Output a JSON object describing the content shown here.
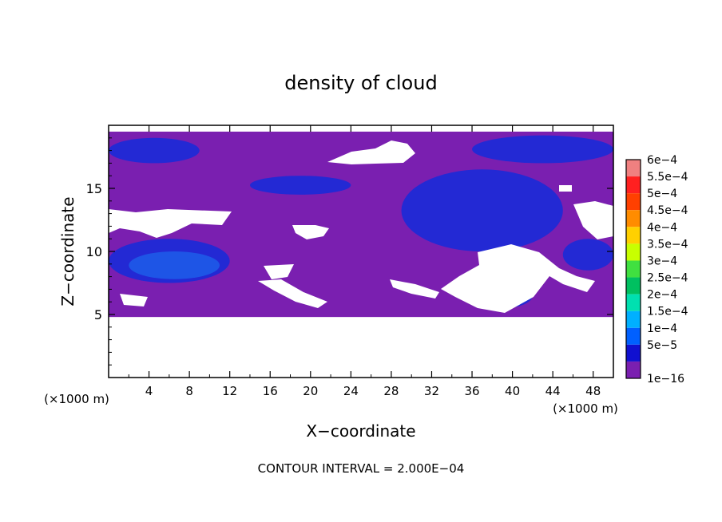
{
  "chart_data": {
    "type": "heatmap",
    "title": "density of cloud",
    "xlabel": "X−coordinate",
    "ylabel": "Z−coordinate",
    "x_unit_left": "(×1000 m)",
    "x_unit_right": "(×1000 m)",
    "footer": "CONTOUR INTERVAL = 2.000E−04",
    "xlim": [
      0,
      50
    ],
    "ylim": [
      0,
      20
    ],
    "x_ticks": [
      4,
      8,
      12,
      16,
      20,
      24,
      28,
      32,
      36,
      40,
      44,
      48
    ],
    "y_ticks": [
      5,
      10,
      15
    ],
    "colorbar": {
      "labels": [
        "6e−4",
        "5.5e−4",
        "5e−4",
        "4.5e−4",
        "4e−4",
        "3.5e−4",
        "3e−4",
        "2.5e−4",
        "2e−4",
        "1.5e−4",
        "1e−4",
        "5e−5",
        "1e−16"
      ],
      "colors": [
        "#f08080",
        "#ff2020",
        "#ff4000",
        "#ff8c00",
        "#ffd000",
        "#c8ff00",
        "#40e040",
        "#00c060",
        "#00e0b0",
        "#00b0ff",
        "#0060ff",
        "#1010d0",
        "#7a1fb0"
      ]
    },
    "field_regions": [
      {
        "level": "1e−16",
        "color": "#7a1fb0",
        "x": [
          0,
          50
        ],
        "z": [
          4.8,
          19.5
        ]
      },
      {
        "level": "5e−5",
        "color": "#1a2ad8",
        "x": [
          0,
          9
        ],
        "z": [
          17,
          19
        ]
      },
      {
        "level": "5e−5",
        "color": "#1a2ad8",
        "x": [
          36,
          50
        ],
        "z": [
          17,
          19.2
        ]
      },
      {
        "level": "5e−5",
        "color": "#1a2ad8",
        "x": [
          14,
          24
        ],
        "z": [
          14.5,
          16
        ]
      },
      {
        "level": "5e−5",
        "color": "#1a2ad8",
        "x": [
          29,
          45
        ],
        "z": [
          10,
          16.5
        ]
      },
      {
        "level": "5e−5",
        "color": "#1a2ad8",
        "x": [
          0,
          12
        ],
        "z": [
          7.5,
          11
        ]
      },
      {
        "level": "5e−5",
        "color": "#1a2ad8",
        "x": [
          45,
          50
        ],
        "z": [
          8.5,
          11
        ]
      },
      {
        "level": "5e−5",
        "color": "#1a2ad8",
        "x": [
          36,
          42
        ],
        "z": [
          5.5,
          7.5
        ]
      },
      {
        "level": "1e−4",
        "color": "#1e5ae8",
        "x": [
          2,
          11
        ],
        "z": [
          7.8,
          10
        ]
      }
    ]
  }
}
